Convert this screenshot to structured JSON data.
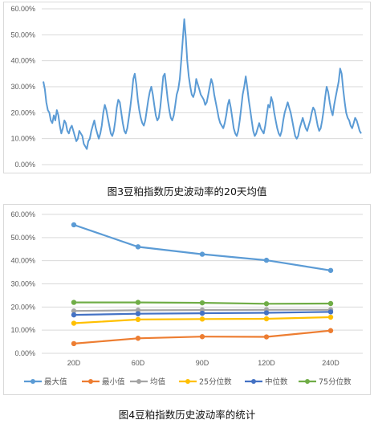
{
  "captions": {
    "fig3": "图3豆粕指数历史波动率的20天均值",
    "fig4": "图4豆粕指数历史波动率的统计"
  },
  "colors": {
    "series_blue": "#5b9bd5",
    "orange": "#ed7d31",
    "gray": "#a5a5a5",
    "yellow": "#ffc000",
    "dark_blue": "#4472c4",
    "green": "#70ad47",
    "grid": "#d9d9d9",
    "tick": "#595959"
  },
  "chart_data": [
    {
      "type": "line",
      "title": "",
      "ylim": [
        0,
        60
      ],
      "yticks": [
        "0.00%",
        "10.00%",
        "20.00%",
        "30.00%",
        "40.00%",
        "50.00%",
        "60.00%"
      ],
      "grid": true,
      "series": [
        {
          "color": "#5b9bd5",
          "values": [
            32,
            29,
            24,
            21,
            20,
            17,
            16,
            19,
            17,
            21,
            19,
            15,
            12,
            14,
            17,
            16,
            13,
            12,
            14,
            15,
            13,
            11,
            9,
            10,
            13,
            12,
            11,
            8,
            7,
            6,
            9,
            10,
            13,
            15,
            17,
            14,
            12,
            10,
            12,
            15,
            20,
            23,
            21,
            18,
            15,
            12,
            11,
            13,
            17,
            22,
            25,
            24,
            20,
            16,
            13,
            12,
            14,
            18,
            22,
            27,
            33,
            35,
            31,
            25,
            21,
            18,
            16,
            15,
            17,
            21,
            25,
            28,
            30,
            27,
            23,
            19,
            17,
            18,
            22,
            28,
            34,
            35,
            30,
            25,
            21,
            18,
            17,
            19,
            23,
            27,
            29,
            33,
            40,
            48,
            56,
            49,
            40,
            34,
            30,
            27,
            26,
            28,
            33,
            31,
            29,
            27,
            26,
            25,
            23,
            24,
            27,
            30,
            33,
            31,
            27,
            24,
            21,
            18,
            16,
            15,
            14,
            16,
            19,
            23,
            25,
            22,
            18,
            14,
            12,
            11,
            13,
            17,
            22,
            27,
            30,
            34,
            30,
            25,
            21,
            17,
            13,
            11,
            12,
            14,
            16,
            14,
            13,
            12,
            15,
            19,
            23,
            22,
            26,
            24,
            20,
            17,
            14,
            12,
            11,
            13,
            17,
            20,
            22,
            24,
            22,
            20,
            17,
            14,
            11,
            10,
            11,
            14,
            16,
            18,
            16,
            14,
            13,
            15,
            17,
            20,
            22,
            21,
            18,
            15,
            13,
            14,
            17,
            21,
            26,
            30,
            28,
            24,
            21,
            19,
            23,
            26,
            29,
            32,
            37,
            35,
            29,
            24,
            20,
            18,
            17,
            15,
            14,
            16,
            18,
            17,
            15,
            13,
            12
          ]
        }
      ]
    },
    {
      "type": "line",
      "title": "",
      "categories": [
        "20D",
        "60D",
        "90D",
        "120D",
        "240D"
      ],
      "ylim": [
        0,
        60
      ],
      "yticks": [
        "0.00%",
        "10.00%",
        "20.00%",
        "30.00%",
        "40.00%",
        "50.00%",
        "60.00%"
      ],
      "grid": true,
      "legend_position": "bottom",
      "series": [
        {
          "name": "最大值",
          "color": "#5b9bd5",
          "values": [
            55.5,
            46.0,
            42.8,
            40.2,
            35.8
          ]
        },
        {
          "name": "最小值",
          "color": "#ed7d31",
          "values": [
            4.2,
            6.5,
            7.2,
            7.1,
            9.8
          ]
        },
        {
          "name": "均值",
          "color": "#a5a5a5",
          "values": [
            18.3,
            18.6,
            18.7,
            18.8,
            18.8
          ]
        },
        {
          "name": "25分位数",
          "color": "#ffc000",
          "values": [
            13.0,
            14.6,
            14.8,
            14.9,
            15.6
          ]
        },
        {
          "name": "中位数",
          "color": "#4472c4",
          "values": [
            16.6,
            17.1,
            17.3,
            17.5,
            17.9
          ]
        },
        {
          "name": "75分位数",
          "color": "#70ad47",
          "values": [
            22.0,
            22.0,
            21.8,
            21.4,
            21.5
          ]
        }
      ]
    }
  ]
}
